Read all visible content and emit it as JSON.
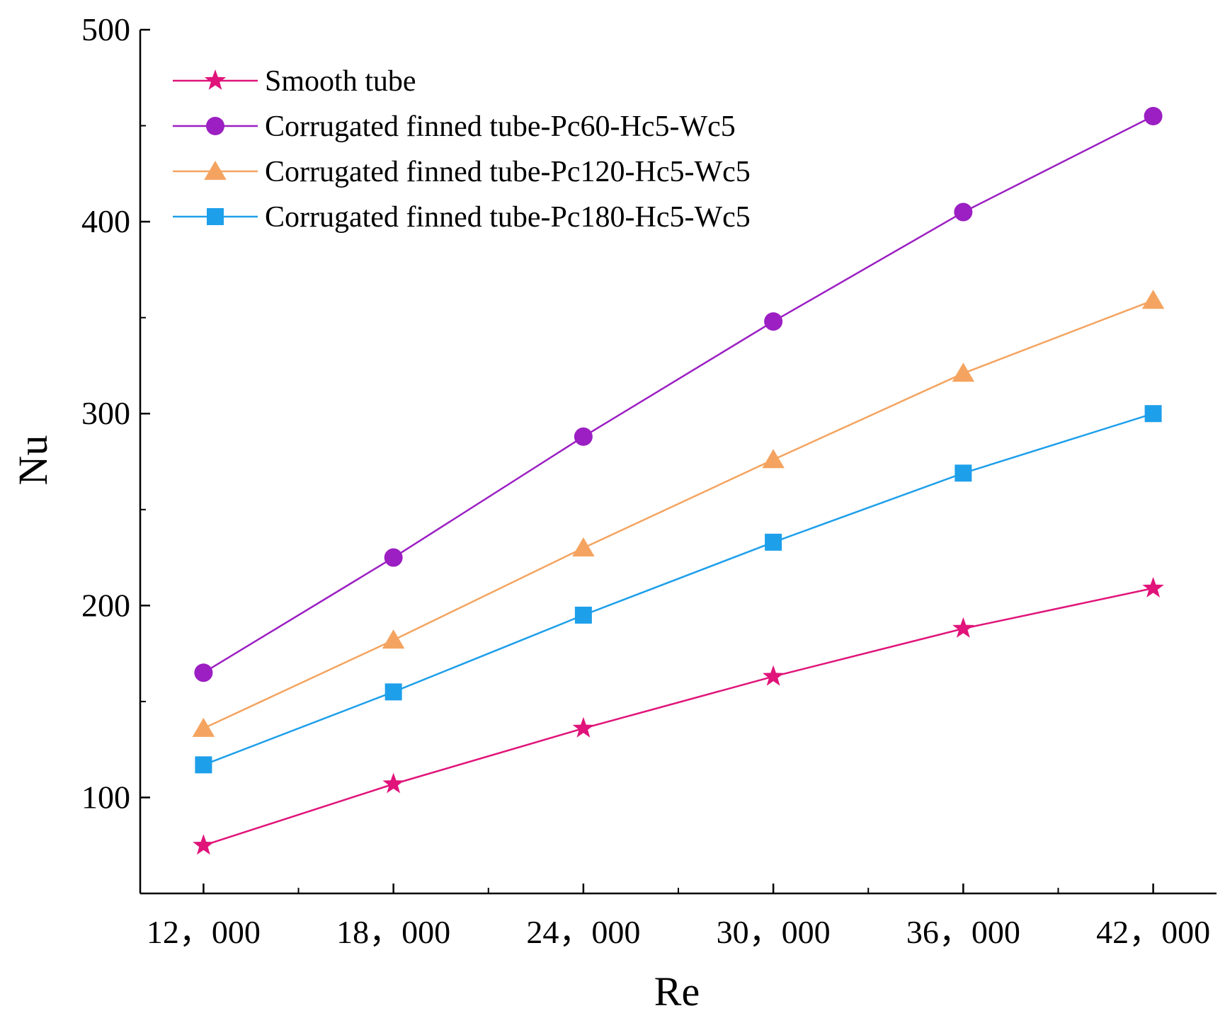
{
  "chart_data": {
    "type": "line",
    "title": "",
    "xlabel": "Re",
    "ylabel": "Nu",
    "x": [
      12000,
      18000,
      24000,
      30000,
      36000,
      42000
    ],
    "x_tick_labels": [
      "12，000",
      "18，000",
      "24，000",
      "30，000",
      "36，000",
      "42，000"
    ],
    "xlim": [
      10000,
      44000
    ],
    "ylim": [
      50,
      500
    ],
    "y_ticks": [
      100,
      200,
      300,
      400,
      500
    ],
    "y_tick_labels": [
      "100",
      "200",
      "300",
      "400",
      "500"
    ],
    "grid": false,
    "legend_position": "top-left",
    "series": [
      {
        "name": "Smooth tube",
        "color": "#E0147A",
        "marker": "star",
        "values": [
          75,
          107,
          136,
          163,
          188,
          209
        ]
      },
      {
        "name": "Corrugated finned tube-Pc60-Hc5-Wc5",
        "color": "#9B1FC2",
        "marker": "circle",
        "values": [
          165,
          225,
          288,
          348,
          405,
          455
        ]
      },
      {
        "name": "Corrugated finned tube-Pc120-Hc5-Wc5",
        "color": "#F4A460",
        "marker": "triangle",
        "values": [
          136,
          182,
          230,
          276,
          321,
          359
        ]
      },
      {
        "name": "Corrugated finned tube-Pc180-Hc5-Wc5",
        "color": "#1E9FEA",
        "marker": "square",
        "values": [
          117,
          155,
          195,
          233,
          269,
          300
        ]
      }
    ]
  }
}
